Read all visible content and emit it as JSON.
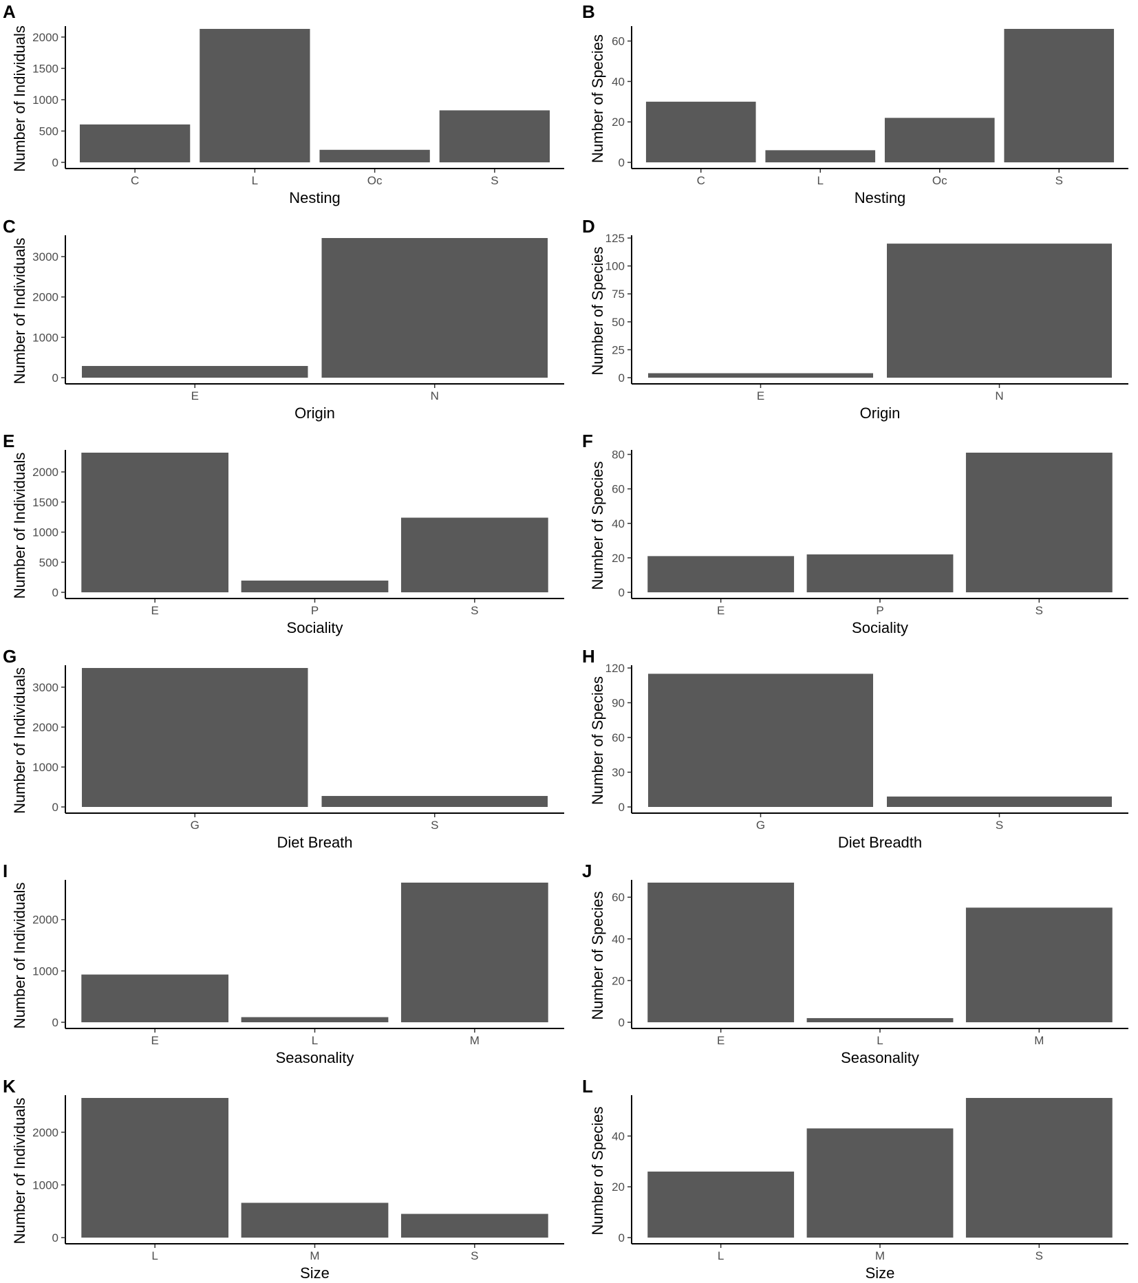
{
  "colors": {
    "bar": "#595959",
    "axis": "#000000",
    "tick_text": "#4d4d4d"
  },
  "chart_data": [
    {
      "id": "A",
      "type": "bar",
      "categories": [
        "C",
        "L",
        "Oc",
        "S"
      ],
      "values": [
        605,
        2130,
        200,
        830
      ],
      "xlabel": "Nesting",
      "ylabel": "Number of Individuals",
      "ylim": [
        0,
        2130
      ],
      "yticks": [
        0,
        500,
        1000,
        1500,
        2000
      ],
      "grid": false
    },
    {
      "id": "B",
      "type": "bar",
      "categories": [
        "C",
        "L",
        "Oc",
        "S"
      ],
      "values": [
        30,
        6,
        22,
        66
      ],
      "xlabel": "Nesting",
      "ylabel": "Number of Species",
      "ylim": [
        0,
        66
      ],
      "yticks": [
        0,
        20,
        40,
        60
      ],
      "grid": false
    },
    {
      "id": "C",
      "type": "bar",
      "categories": [
        "E",
        "N"
      ],
      "values": [
        290,
        3460
      ],
      "xlabel": "Origin",
      "ylabel": "Number of Individuals",
      "ylim": [
        0,
        3460
      ],
      "yticks": [
        0,
        1000,
        2000,
        3000
      ],
      "grid": false
    },
    {
      "id": "D",
      "type": "bar",
      "categories": [
        "E",
        "N"
      ],
      "values": [
        4,
        120
      ],
      "xlabel": "Origin",
      "ylabel": "Number of Species",
      "ylim": [
        0,
        125
      ],
      "yticks": [
        0,
        25,
        50,
        75,
        100,
        125
      ],
      "grid": false
    },
    {
      "id": "E",
      "type": "bar",
      "categories": [
        "E",
        "P",
        "S"
      ],
      "values": [
        2320,
        195,
        1240
      ],
      "xlabel": "Sociality",
      "ylabel": "Number of Individuals",
      "ylim": [
        0,
        2320
      ],
      "yticks": [
        0,
        500,
        1000,
        1500,
        2000
      ],
      "grid": false
    },
    {
      "id": "F",
      "type": "bar",
      "categories": [
        "E",
        "P",
        "S"
      ],
      "values": [
        21,
        22,
        81
      ],
      "xlabel": "Sociality",
      "ylabel": "Number of Species",
      "ylim": [
        0,
        81
      ],
      "yticks": [
        0,
        20,
        40,
        60,
        80
      ],
      "grid": false
    },
    {
      "id": "G",
      "type": "bar",
      "categories": [
        "G",
        "S"
      ],
      "values": [
        3480,
        275
      ],
      "xlabel": "Diet Breath",
      "ylabel": "Number of Individuals",
      "ylim": [
        0,
        3480
      ],
      "yticks": [
        0,
        1000,
        2000,
        3000
      ],
      "grid": false
    },
    {
      "id": "H",
      "type": "bar",
      "categories": [
        "G",
        "S"
      ],
      "values": [
        115,
        9
      ],
      "xlabel": "Diet Breadth",
      "ylabel": "Number of Species",
      "ylim": [
        0,
        120
      ],
      "yticks": [
        0,
        30,
        60,
        90,
        120
      ],
      "grid": false
    },
    {
      "id": "I",
      "type": "bar",
      "categories": [
        "E",
        "L",
        "M"
      ],
      "values": [
        930,
        100,
        2720
      ],
      "xlabel": "Seasonality",
      "ylabel": "Number of Individuals",
      "ylim": [
        0,
        2720
      ],
      "yticks": [
        0,
        1000,
        2000
      ],
      "grid": false
    },
    {
      "id": "J",
      "type": "bar",
      "categories": [
        "E",
        "L",
        "M"
      ],
      "values": [
        67,
        2,
        55
      ],
      "xlabel": "Seasonality",
      "ylabel": "Number of Species",
      "ylim": [
        0,
        67
      ],
      "yticks": [
        0,
        20,
        40,
        60
      ],
      "grid": false
    },
    {
      "id": "K",
      "type": "bar",
      "categories": [
        "L",
        "M",
        "S"
      ],
      "values": [
        2650,
        660,
        450
      ],
      "xlabel": "Size",
      "ylabel": "Number of Individuals",
      "ylim": [
        0,
        2650
      ],
      "yticks": [
        0,
        1000,
        2000
      ],
      "grid": false
    },
    {
      "id": "L",
      "type": "bar",
      "categories": [
        "L",
        "M",
        "S"
      ],
      "values": [
        26,
        43,
        55
      ],
      "xlabel": "Size",
      "ylabel": "Number of Species",
      "ylim": [
        0,
        55
      ],
      "yticks": [
        0,
        20,
        40
      ],
      "grid": false
    }
  ]
}
